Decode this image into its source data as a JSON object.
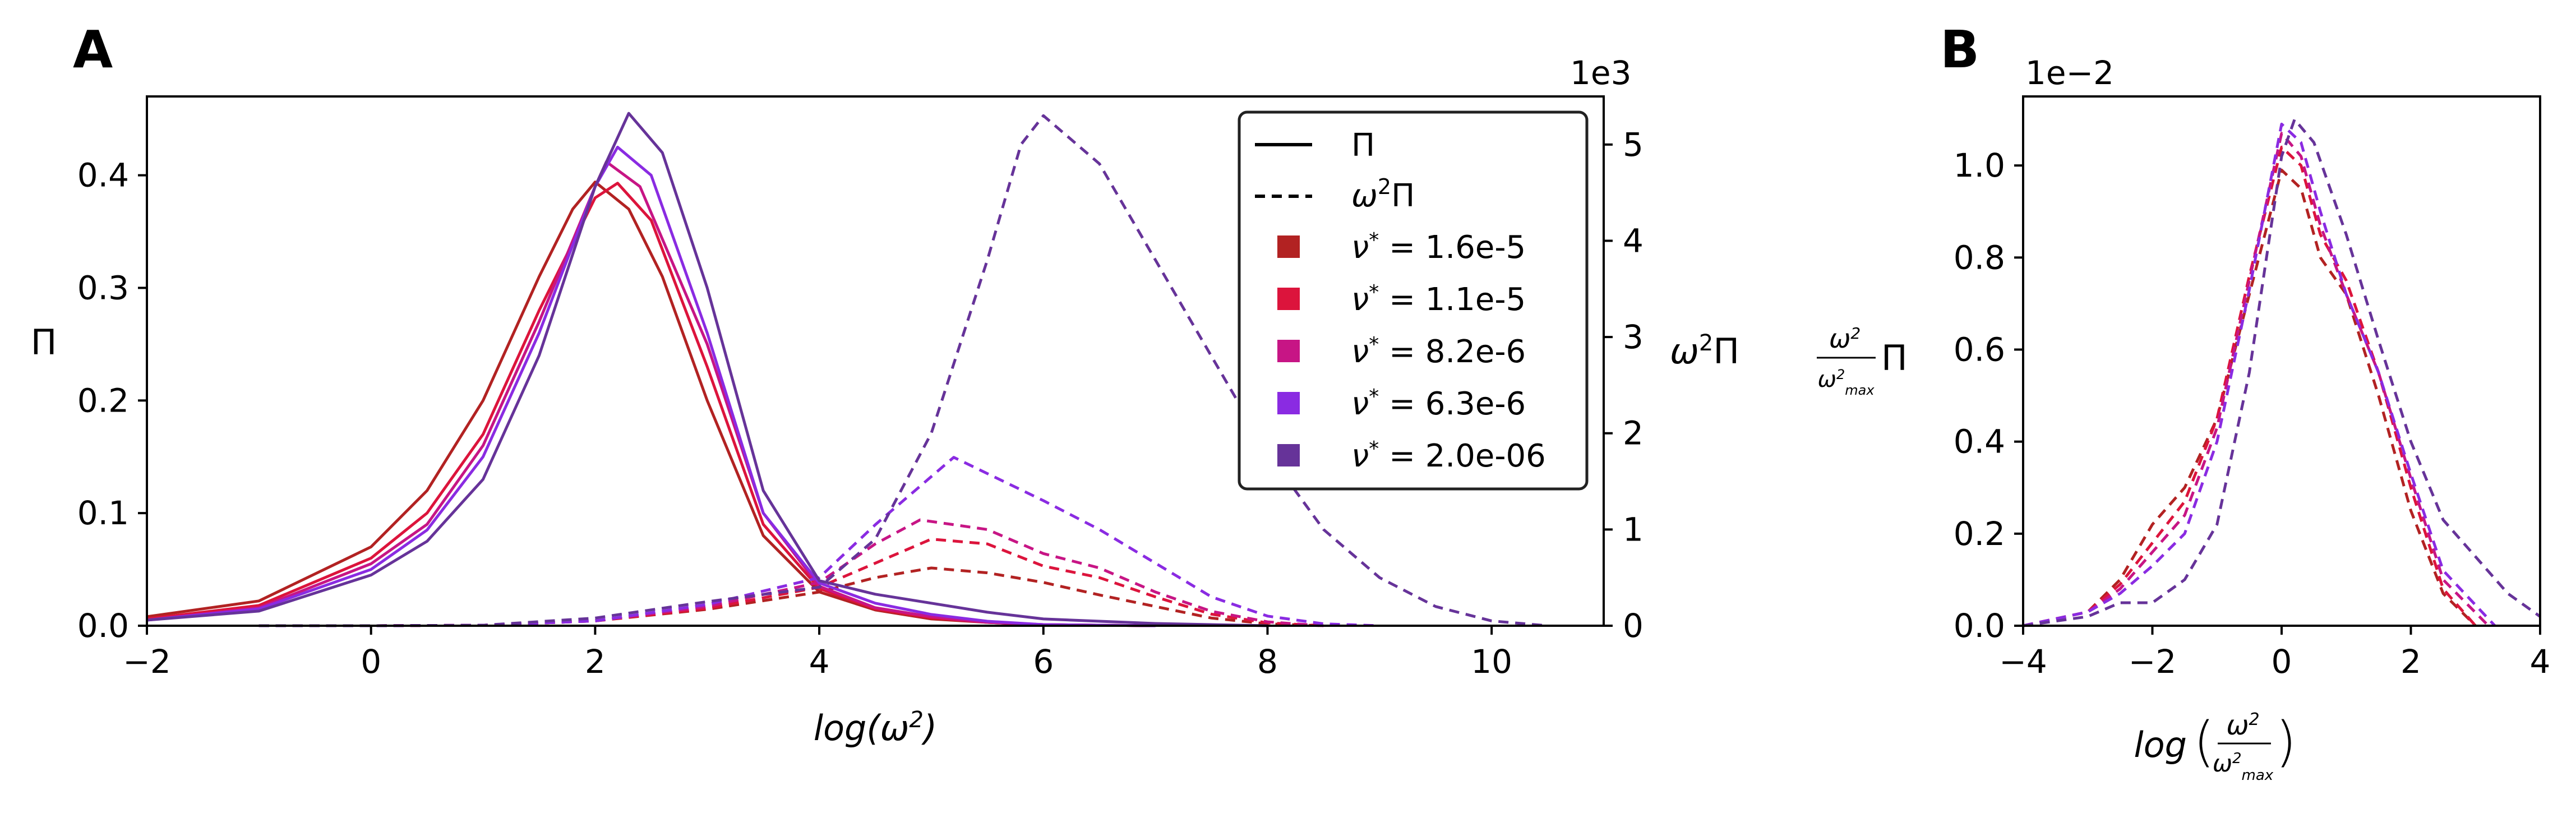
{
  "chart_data": [
    {
      "panel": "A",
      "type": "line",
      "xlabel": "log(ω²)",
      "ylabel_left": "Π",
      "ylabel_right": "ω²Π",
      "right_axis_multiplier": "1e3",
      "xlim": [
        -2,
        11
      ],
      "ylim_left": [
        0,
        0.47
      ],
      "ylim_right": [
        0,
        5.5
      ],
      "xticks": [
        -2,
        0,
        2,
        4,
        6,
        8,
        10
      ],
      "yticks_left": [
        0.0,
        0.1,
        0.2,
        0.3,
        0.4
      ],
      "yticks_right": [
        0,
        1,
        2,
        3,
        4,
        5
      ],
      "legend": {
        "placement": "top-right",
        "style_entries": [
          {
            "label": "Π",
            "style": "solid"
          },
          {
            "label": "ω²Π",
            "style": "dashed"
          }
        ],
        "series_entries": [
          {
            "label": "ν* = 1.6e-5",
            "color": "#b22222"
          },
          {
            "label": "ν* = 1.1e-5",
            "color": "#dc143c"
          },
          {
            "label": "ν* = 8.2e-6",
            "color": "#c71585"
          },
          {
            "label": "ν* = 6.3e-6",
            "color": "#8a2be2"
          },
          {
            "label": "ν* = 2.0e-06",
            "color": "#663399"
          }
        ]
      },
      "series": [
        {
          "name": "ν* = 1.6e-5",
          "color": "#b22222",
          "pi": {
            "x": [
              -2,
              -1,
              0,
              0.5,
              1,
              1.5,
              1.8,
              2,
              2.3,
              2.6,
              3,
              3.5,
              4,
              4.5,
              5,
              5.5,
              6,
              7
            ],
            "y": [
              0.008,
              0.022,
              0.07,
              0.12,
              0.2,
              0.31,
              0.37,
              0.394,
              0.37,
              0.31,
              0.2,
              0.08,
              0.03,
              0.014,
              0.006,
              0.003,
              0.001,
              0
            ]
          },
          "w2pi": {
            "x": [
              -1,
              0,
              1,
              2,
              3,
              4,
              4.5,
              5,
              5.5,
              6,
              6.5,
              7,
              7.5,
              8,
              8.5
            ],
            "y": [
              0,
              0,
              0.005,
              0.05,
              0.17,
              0.35,
              0.5,
              0.6,
              0.55,
              0.45,
              0.32,
              0.2,
              0.08,
              0.02,
              0
            ]
          }
        },
        {
          "name": "ν* = 1.1e-5",
          "color": "#dc143c",
          "pi": {
            "x": [
              -2,
              -1,
              0,
              0.5,
              1,
              1.5,
              2,
              2.2,
              2.5,
              3,
              3.5,
              4,
              4.5,
              5,
              5.5,
              6,
              7
            ],
            "y": [
              0.006,
              0.018,
              0.06,
              0.1,
              0.17,
              0.28,
              0.38,
              0.393,
              0.36,
              0.23,
              0.09,
              0.033,
              0.015,
              0.007,
              0.003,
              0.001,
              0
            ]
          },
          "w2pi": {
            "x": [
              -1,
              0,
              1,
              2,
              3,
              4,
              4.5,
              5,
              5.5,
              6,
              6.5,
              7,
              7.5,
              8,
              8.5
            ],
            "y": [
              0,
              0,
              0.005,
              0.05,
              0.18,
              0.4,
              0.65,
              0.9,
              0.85,
              0.62,
              0.5,
              0.3,
              0.12,
              0.03,
              0
            ]
          }
        },
        {
          "name": "ν* = 8.2e-6",
          "color": "#c71585",
          "pi": {
            "x": [
              -2,
              -1,
              0,
              0.5,
              1,
              1.5,
              2,
              2.1,
              2.4,
              3,
              3.5,
              4,
              4.5,
              5,
              5.5,
              6,
              7
            ],
            "y": [
              0.005,
              0.016,
              0.055,
              0.09,
              0.16,
              0.27,
              0.39,
              0.412,
              0.39,
              0.25,
              0.1,
              0.035,
              0.016,
              0.008,
              0.003,
              0.001,
              0
            ]
          },
          "w2pi": {
            "x": [
              -1,
              0,
              1,
              2,
              3,
              4,
              4.5,
              4.9,
              5.5,
              6,
              6.5,
              7,
              7.5,
              8,
              8.5
            ],
            "y": [
              0,
              0,
              0.005,
              0.05,
              0.2,
              0.45,
              0.85,
              1.1,
              1.0,
              0.75,
              0.6,
              0.35,
              0.15,
              0.04,
              0
            ]
          }
        },
        {
          "name": "ν* = 6.3e-6",
          "color": "#8a2be2",
          "pi": {
            "x": [
              -2,
              -1,
              0,
              0.5,
              1,
              1.5,
              2,
              2.2,
              2.5,
              3,
              3.5,
              4,
              4.5,
              5,
              5.5,
              6,
              7
            ],
            "y": [
              0.005,
              0.015,
              0.05,
              0.085,
              0.15,
              0.26,
              0.39,
              0.425,
              0.4,
              0.26,
              0.1,
              0.038,
              0.02,
              0.01,
              0.004,
              0.001,
              0
            ]
          },
          "w2pi": {
            "x": [
              -1,
              0,
              1,
              2,
              3,
              4,
              4.5,
              5.2,
              6,
              6.5,
              7,
              7.5,
              8,
              8.5,
              9
            ],
            "y": [
              0,
              0,
              0.005,
              0.05,
              0.22,
              0.5,
              1.05,
              1.75,
              1.3,
              1.0,
              0.65,
              0.3,
              0.1,
              0.02,
              0
            ]
          }
        },
        {
          "name": "ν* = 2.0e-06",
          "color": "#663399",
          "pi": {
            "x": [
              -2,
              -1,
              0,
              0.5,
              1,
              1.5,
              2,
              2.3,
              2.6,
              3,
              3.5,
              4,
              4.5,
              5,
              5.5,
              6,
              7,
              8
            ],
            "y": [
              0.005,
              0.013,
              0.045,
              0.075,
              0.13,
              0.24,
              0.39,
              0.455,
              0.42,
              0.3,
              0.12,
              0.04,
              0.028,
              0.02,
              0.012,
              0.006,
              0.002,
              0
            ]
          },
          "w2pi": {
            "x": [
              -1,
              0,
              1,
              2,
              3,
              4,
              4.5,
              5,
              5.5,
              5.8,
              6,
              6.5,
              7,
              7.5,
              8,
              8.5,
              9,
              9.5,
              10,
              10.5
            ],
            "y": [
              0,
              0,
              0.005,
              0.08,
              0.25,
              0.4,
              0.9,
              2.0,
              3.8,
              5.0,
              5.3,
              4.8,
              3.8,
              2.8,
              1.8,
              1.0,
              0.5,
              0.2,
              0.05,
              0
            ]
          }
        }
      ]
    },
    {
      "panel": "B",
      "type": "line",
      "xlabel": "log(ω²/ω²max)",
      "ylabel": "(ω²/ω²max) Π",
      "y_multiplier": "1e−2",
      "xlim": [
        -4,
        4
      ],
      "ylim": [
        0,
        1.15
      ],
      "xticks": [
        -4,
        -2,
        0,
        2,
        4
      ],
      "yticks": [
        0.0,
        0.2,
        0.4,
        0.6,
        0.8,
        1.0
      ],
      "series": [
        {
          "name": "ν* = 1.6e-5",
          "color": "#b22222",
          "style": "dashed",
          "x": [
            -4,
            -3,
            -2.5,
            -2,
            -1.5,
            -1,
            -0.5,
            0,
            0.3,
            0.6,
            1,
            1.5,
            2,
            2.5,
            3
          ],
          "y": [
            0,
            0.03,
            0.1,
            0.22,
            0.3,
            0.45,
            0.72,
            0.99,
            0.95,
            0.8,
            0.72,
            0.5,
            0.25,
            0.07,
            0
          ]
        },
        {
          "name": "ν* = 1.1e-5",
          "color": "#dc143c",
          "style": "dashed",
          "x": [
            -4,
            -3,
            -2.5,
            -2,
            -1.5,
            -1,
            -0.5,
            0,
            0.3,
            0.6,
            1,
            1.5,
            2,
            2.5,
            3
          ],
          "y": [
            0,
            0.03,
            0.09,
            0.18,
            0.27,
            0.45,
            0.76,
            1.04,
            1.0,
            0.85,
            0.75,
            0.55,
            0.3,
            0.08,
            0
          ]
        },
        {
          "name": "ν* = 8.2e-6",
          "color": "#c71585",
          "style": "dashed",
          "x": [
            -4,
            -3,
            -2.5,
            -2,
            -1.5,
            -1,
            -0.5,
            0,
            0.3,
            0.6,
            1,
            1.5,
            2,
            2.5,
            3.2
          ],
          "y": [
            0,
            0.03,
            0.08,
            0.16,
            0.24,
            0.43,
            0.75,
            1.07,
            1.02,
            0.87,
            0.72,
            0.55,
            0.32,
            0.1,
            0
          ]
        },
        {
          "name": "ν* = 6.3e-6",
          "color": "#8a2be2",
          "style": "dashed",
          "x": [
            -4,
            -3,
            -2.5,
            -2,
            -1.5,
            -1,
            -0.5,
            0,
            0.3,
            0.6,
            1,
            1.5,
            2,
            2.5,
            3.3
          ],
          "y": [
            0,
            0.03,
            0.07,
            0.13,
            0.2,
            0.4,
            0.73,
            1.09,
            1.05,
            0.9,
            0.72,
            0.55,
            0.33,
            0.12,
            0
          ]
        },
        {
          "name": "ν* = 2.0e-06",
          "color": "#663399",
          "style": "dashed",
          "x": [
            -4,
            -3,
            -2.5,
            -2,
            -1.5,
            -1,
            -0.5,
            0,
            0.2,
            0.5,
            1,
            1.5,
            2,
            2.5,
            3,
            3.5,
            4
          ],
          "y": [
            0,
            0.02,
            0.05,
            0.05,
            0.1,
            0.22,
            0.55,
            1.02,
            1.1,
            1.05,
            0.85,
            0.62,
            0.4,
            0.23,
            0.15,
            0.07,
            0.02
          ]
        }
      ]
    }
  ]
}
